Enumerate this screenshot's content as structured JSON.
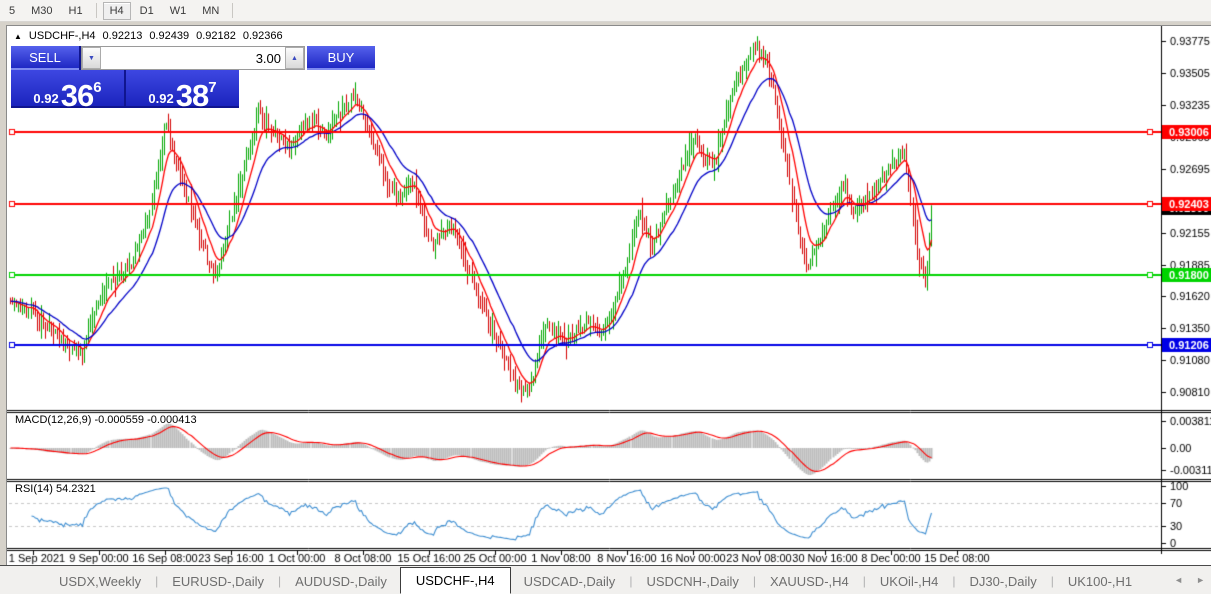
{
  "toolbar": {
    "timeframes": [
      {
        "label": "5",
        "active": false
      },
      {
        "label": "M30",
        "active": false
      },
      {
        "label": "H1",
        "active": false
      },
      {
        "label": "H4",
        "active": true
      },
      {
        "label": "D1",
        "active": false
      },
      {
        "label": "W1",
        "active": false
      },
      {
        "label": "MN",
        "active": false
      }
    ]
  },
  "chart_header": {
    "expand_glyph": "▲",
    "symbol": "USDCHF-,H4",
    "open": "0.92213",
    "high": "0.92439",
    "low": "0.92182",
    "close": "0.92366"
  },
  "trade_panel": {
    "sell_label": "SELL",
    "buy_label": "BUY",
    "volume": "3.00",
    "down_glyph": "▼",
    "up_glyph": "▲",
    "sell_price_prefix": "0.92",
    "sell_price_big": "36",
    "sell_price_sup": "6",
    "buy_price_prefix": "0.92",
    "buy_price_big": "38",
    "buy_price_sup": "7"
  },
  "chart_data": {
    "type": "candlestick",
    "symbol": "USDCHF-,H4",
    "bars": 450,
    "last_close": 0.92366,
    "ohlc": {
      "open": 0.92213,
      "high": 0.92439,
      "low": 0.92182,
      "close": 0.92366
    },
    "price_axis": {
      "ticks": [
        "0.93775",
        "0.93505",
        "0.93235",
        "0.92965",
        "0.92695",
        "0.92155",
        "0.91885",
        "0.91620",
        "0.91350",
        "0.91080",
        "0.90810"
      ]
    },
    "current_price_tag": {
      "label": "0.92366",
      "value": 0.92366,
      "bg": "#000000",
      "fg": "#ffffff"
    },
    "hlines": [
      {
        "label": "0.93006",
        "price": 0.93006,
        "color": "#ff0000"
      },
      {
        "label": "0.92403",
        "price": 0.92403,
        "color": "#ff0000"
      },
      {
        "label": "0.91800",
        "price": 0.918,
        "color": "#00d400"
      },
      {
        "label": "0.91206",
        "price": 0.91206,
        "color": "#0000e6"
      }
    ],
    "x_axis": {
      "labels": [
        "1 Sep 2021",
        "9 Sep 00:00",
        "16 Sep 08:00",
        "23 Sep 16:00",
        "1 Oct 00:00",
        "8 Oct 08:00",
        "15 Oct 16:00",
        "25 Oct 00:00",
        "1 Nov 08:00",
        "8 Nov 16:00",
        "16 Nov 00:00",
        "23 Nov 08:00",
        "30 Nov 16:00",
        "8 Dec 00:00",
        "15 Dec 08:00"
      ]
    },
    "macd": {
      "label": "MACD(12,26,9) -0.000559 -0.000413",
      "params": [
        12,
        26,
        9
      ],
      "values": [
        -0.000559,
        -0.000413
      ],
      "ticks": [
        "0.003811",
        "0.00",
        "-0.003115"
      ],
      "tick_values": [
        0.003811,
        0,
        -0.003115
      ]
    },
    "rsi": {
      "label": "RSI(14) 54.2321",
      "period": 14,
      "value": 54.2321,
      "ticks": [
        "100",
        "70",
        "30",
        "0"
      ],
      "tick_values": [
        100,
        70,
        30,
        0
      ],
      "levels": [
        70,
        30
      ]
    },
    "price_path_anchors": [
      [
        0.0,
        0.9158
      ],
      [
        0.025,
        0.9145
      ],
      [
        0.055,
        0.9126
      ],
      [
        0.078,
        0.9115
      ],
      [
        0.1,
        0.916
      ],
      [
        0.128,
        0.9185
      ],
      [
        0.152,
        0.923
      ],
      [
        0.168,
        0.9305
      ],
      [
        0.183,
        0.9268
      ],
      [
        0.205,
        0.921
      ],
      [
        0.222,
        0.9176
      ],
      [
        0.245,
        0.9243
      ],
      [
        0.27,
        0.932
      ],
      [
        0.287,
        0.9298
      ],
      [
        0.303,
        0.9288
      ],
      [
        0.322,
        0.9312
      ],
      [
        0.342,
        0.9292
      ],
      [
        0.375,
        0.9332
      ],
      [
        0.397,
        0.9282
      ],
      [
        0.417,
        0.9242
      ],
      [
        0.437,
        0.9257
      ],
      [
        0.457,
        0.9202
      ],
      [
        0.478,
        0.9225
      ],
      [
        0.5,
        0.9178
      ],
      [
        0.527,
        0.9128
      ],
      [
        0.548,
        0.909
      ],
      [
        0.562,
        0.9083
      ],
      [
        0.582,
        0.9133
      ],
      [
        0.602,
        0.9118
      ],
      [
        0.627,
        0.9142
      ],
      [
        0.643,
        0.9126
      ],
      [
        0.662,
        0.9165
      ],
      [
        0.682,
        0.9232
      ],
      [
        0.697,
        0.92
      ],
      [
        0.717,
        0.9246
      ],
      [
        0.742,
        0.9295
      ],
      [
        0.762,
        0.9272
      ],
      [
        0.787,
        0.9342
      ],
      [
        0.81,
        0.9377
      ],
      [
        0.827,
        0.9338
      ],
      [
        0.847,
        0.925
      ],
      [
        0.863,
        0.9186
      ],
      [
        0.882,
        0.9212
      ],
      [
        0.902,
        0.9252
      ],
      [
        0.917,
        0.9232
      ],
      [
        0.937,
        0.9247
      ],
      [
        0.957,
        0.9272
      ],
      [
        0.97,
        0.9288
      ],
      [
        0.985,
        0.9196
      ],
      [
        0.994,
        0.9172
      ],
      [
        1.0,
        0.92366
      ]
    ],
    "colors": {
      "candle_up": "#00a800",
      "candle_down": "#d40000",
      "ma_fast": "#ff0000",
      "ma_slow": "#0000c8",
      "macd_hist": "#bdbdbd",
      "macd_signal": "#ff0000",
      "rsi_line": "#3f8fd2",
      "rsi_levels": "#c8c8c8",
      "axis_text": "#000000"
    }
  },
  "tabs": {
    "items": [
      "USDX,Weekly",
      "EURUSD-,Daily",
      "AUDUSD-,Daily",
      "USDCHF-,H4",
      "USDCAD-,Daily",
      "USDCNH-,Daily",
      "XAUUSD-,H4",
      "UKOil-,H4",
      "DJ30-,Daily",
      "UK100-,H1"
    ],
    "active": "USDCHF-,H4"
  },
  "tab_scroll": {
    "left": "◄",
    "right": "►"
  }
}
